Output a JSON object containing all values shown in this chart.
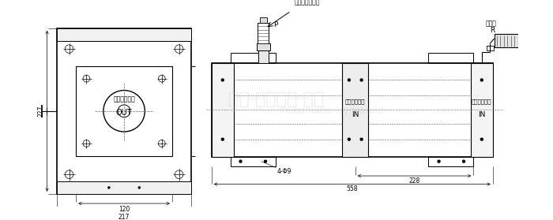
{
  "bg_color": "#ffffff",
  "lc": "#000000",
  "lw_thin": 0.4,
  "lw_med": 0.7,
  "lw_thick": 1.0,
  "lw_border": 1.2,
  "label_drive": "驱动气压输入口",
  "label_silencer": "消声器",
  "label_high_out": "高压输出气口",
  "label_boost_in1": "需增压进气口",
  "label_boost_in2": "需增压进气口",
  "label_out": "OUT",
  "label_in1": "IN",
  "label_in2": "IN",
  "label_p": "P",
  "label_r": "R",
  "dim_227": "227",
  "dim_217": "217",
  "dim_120": "120",
  "dim_558": "558",
  "dim_228": "228",
  "dim_4phi9": "4-Φ9",
  "fs": 6.5,
  "fs_sm": 5.5,
  "fs_med": 7.0
}
